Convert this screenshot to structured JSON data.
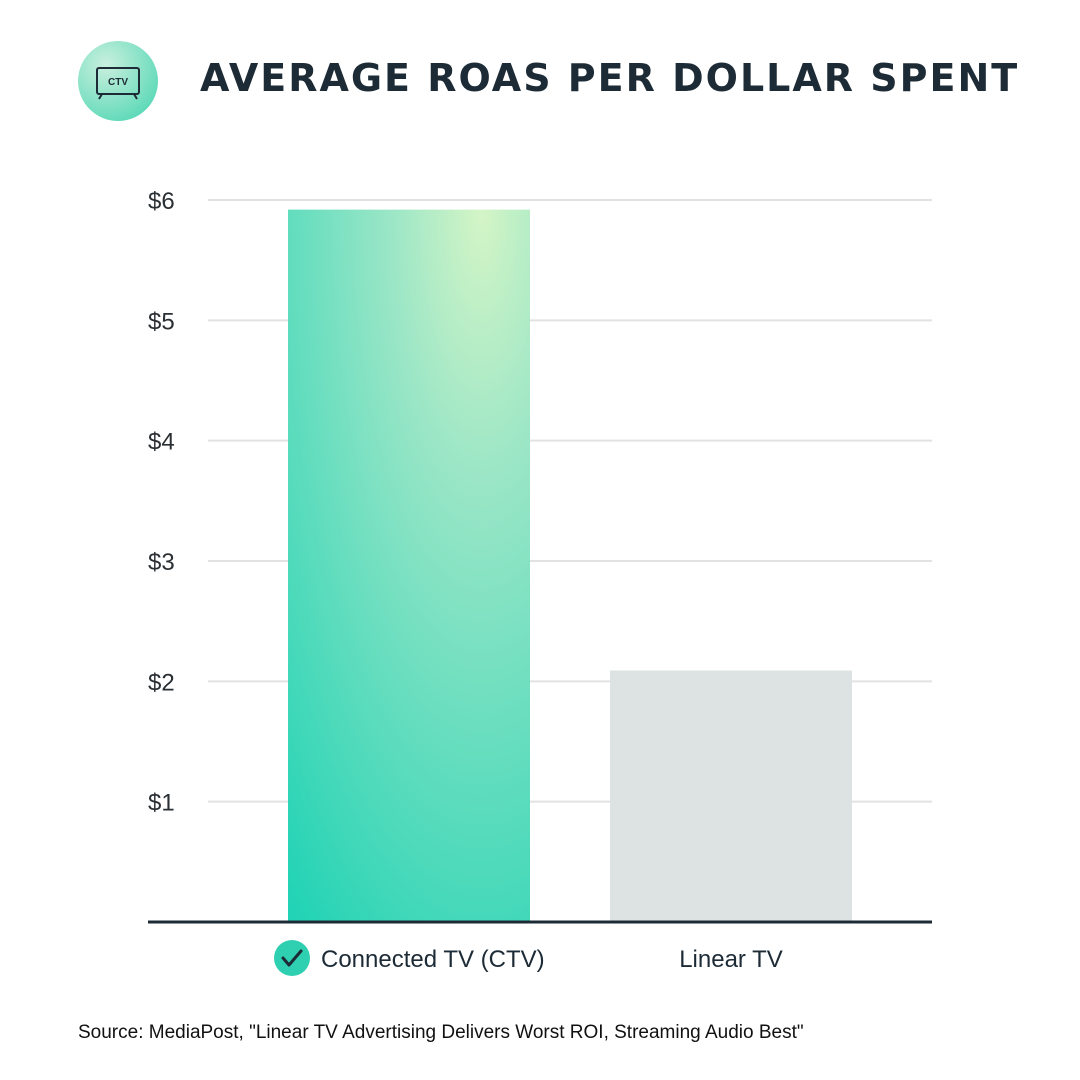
{
  "header": {
    "title": "AVERAGE ROAS PER DOLLAR SPENT",
    "logo": {
      "icon": "tv-icon",
      "label": "CTV"
    }
  },
  "colors": {
    "title": "#1d2b36",
    "ctv_bar_top": "#d4f5c6",
    "ctv_bar_bottom": "#22d3b5",
    "linear_bar": "#dde3e3",
    "grid": "#e2e2e2",
    "axis": "#1d2b36",
    "check_badge": "#2fd0b2"
  },
  "chart_data": {
    "type": "bar",
    "title": "AVERAGE ROAS PER DOLLAR SPENT",
    "xlabel": "",
    "ylabel": "",
    "categories": [
      "Connected TV (CTV)",
      "Linear TV"
    ],
    "values": [
      5.92,
      2.09
    ],
    "ylim": [
      0,
      6
    ],
    "yticks": [
      1,
      2,
      3,
      4,
      5,
      6
    ],
    "ytick_labels": [
      "$1",
      "$2",
      "$3",
      "$4",
      "$5",
      "$6"
    ],
    "grid": true,
    "highlight": {
      "category": "Connected TV (CTV)",
      "icon": "check-circle-icon"
    }
  },
  "footer": {
    "source": "Source: MediaPost, \"Linear TV Advertising Delivers Worst ROI, Streaming Audio Best\""
  }
}
